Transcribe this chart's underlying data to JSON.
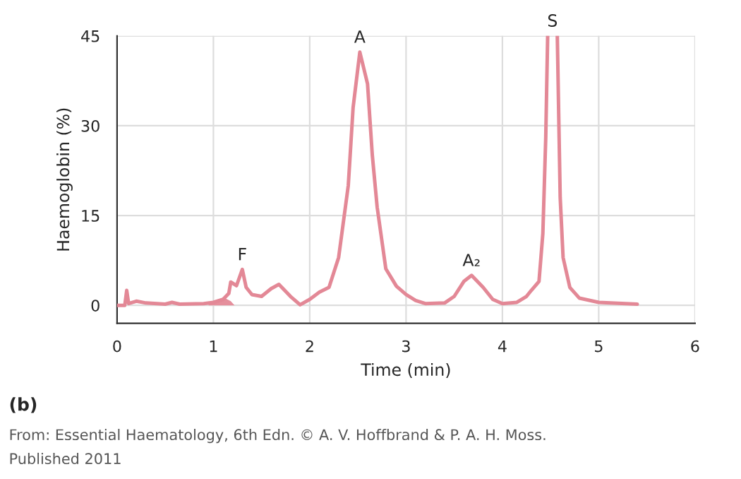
{
  "chart_data": {
    "type": "line",
    "xlabel": "Time (min)",
    "ylabel": "Haemoglobin (%)",
    "xlim": [
      0,
      6
    ],
    "xticks": [
      0,
      1,
      2,
      3,
      4,
      5,
      6
    ],
    "ylim": [
      -3,
      45
    ],
    "yticks": [
      0,
      15,
      30,
      45
    ],
    "grid": true,
    "legend": false,
    "series": [
      {
        "color": "#e38896",
        "x": [
          0,
          0.08,
          0.1,
          0.12,
          0.2,
          0.3,
          0.5,
          0.57,
          0.65,
          0.9,
          1.0,
          1.1,
          1.16,
          1.18,
          1.24,
          1.3,
          1.34,
          1.4,
          1.5,
          1.6,
          1.68,
          1.8,
          1.9,
          2.0,
          2.1,
          2.2,
          2.3,
          2.4,
          2.45,
          2.52,
          2.6,
          2.65,
          2.7,
          2.79,
          2.9,
          3.0,
          3.1,
          3.2,
          3.4,
          3.5,
          3.6,
          3.68,
          3.8,
          3.9,
          4.0,
          4.15,
          4.25,
          4.3,
          4.38,
          4.42,
          4.45,
          4.47,
          4.52,
          4.57,
          4.6,
          4.63,
          4.7,
          4.8,
          5.0,
          5.4
        ],
        "values": [
          0,
          0,
          2.5,
          0.3,
          0.7,
          0.4,
          0.2,
          0.5,
          0.2,
          0.3,
          0.5,
          1.0,
          2.0,
          3.9,
          3.3,
          6.0,
          3.0,
          1.8,
          1.5,
          2.8,
          3.5,
          1.5,
          0.1,
          1.0,
          2.2,
          3.0,
          8.0,
          20,
          33,
          42.3,
          37,
          25,
          16.4,
          6.1,
          3.2,
          1.8,
          0.8,
          0.3,
          0.4,
          1.5,
          4.0,
          5.0,
          3.0,
          1.0,
          0.3,
          0.5,
          1.5,
          2.5,
          4.0,
          12,
          28,
          45,
          null,
          45,
          18,
          8,
          3,
          1.2,
          0.5,
          0.2
        ]
      },
      {
        "type": "area",
        "color": "#e58f9c",
        "x": [
          0.95,
          1.05,
          1.12,
          1.18,
          1.22
        ],
        "values": [
          0.3,
          0.8,
          1.2,
          0.7,
          0
        ]
      }
    ],
    "annotations": [
      {
        "text": "F",
        "x": 1.3,
        "y": 6.0
      },
      {
        "text": "A",
        "x": 2.52,
        "y": 42.3
      },
      {
        "text": "A₂",
        "x": 3.68,
        "y": 5.0
      },
      {
        "text": "S",
        "x": 4.52,
        "y": 45
      },
      "(b)",
      "From: Essential Haematology, 6th Edn. © A. V. Hoffbrand & P. A. H. Moss.",
      "Published 2011"
    ]
  }
}
